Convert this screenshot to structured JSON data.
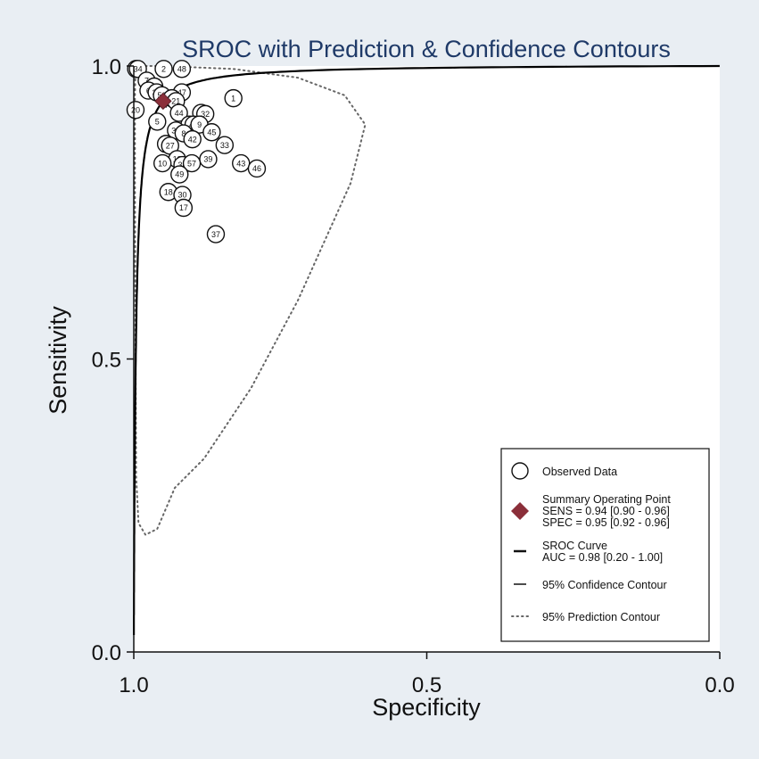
{
  "chart_data": {
    "type": "scatter",
    "title": "SROC with Prediction & Confidence Contours",
    "xlabel": "Specificity",
    "ylabel": "Sensitivity",
    "xlim": [
      1.0,
      0.0
    ],
    "ylim": [
      0.0,
      1.0
    ],
    "x_ticks": [
      "1.0",
      "0.5",
      "0.0"
    ],
    "y_ticks": [
      "0.0",
      "0.5",
      "1.0"
    ],
    "grid": false,
    "legend_position": "bottom-right",
    "colors": {
      "background": "#e9eef3",
      "plot_bg": "#ffffff",
      "summary_point": "#8b2f3a",
      "title": "#1f3a68",
      "curve": "#000000",
      "prediction": "#666666"
    },
    "observed_studies": [
      {
        "label": "24",
        "spec": 0.996,
        "sens": 0.995
      },
      {
        "label": "34",
        "spec": 0.993,
        "sens": 0.995
      },
      {
        "label": "2",
        "spec": 0.949,
        "sens": 0.995
      },
      {
        "label": "48",
        "spec": 0.918,
        "sens": 0.995
      },
      {
        "label": "7",
        "spec": 0.978,
        "sens": 0.975
      },
      {
        "label": "11",
        "spec": 0.965,
        "sens": 0.965
      },
      {
        "label": "6",
        "spec": 0.975,
        "sens": 0.958
      },
      {
        "label": "31",
        "spec": 0.961,
        "sens": 0.955
      },
      {
        "label": "53",
        "spec": 0.952,
        "sens": 0.95
      },
      {
        "label": "47",
        "spec": 0.918,
        "sens": 0.955
      },
      {
        "label": "29",
        "spec": 0.935,
        "sens": 0.945
      },
      {
        "label": "21",
        "spec": 0.928,
        "sens": 0.94
      },
      {
        "label": "1",
        "spec": 0.83,
        "sens": 0.945
      },
      {
        "label": "20",
        "spec": 0.997,
        "sens": 0.925
      },
      {
        "label": "44",
        "spec": 0.923,
        "sens": 0.92
      },
      {
        "label": "13",
        "spec": 0.885,
        "sens": 0.92
      },
      {
        "label": "32",
        "spec": 0.878,
        "sens": 0.918
      },
      {
        "label": "5",
        "spec": 0.96,
        "sens": 0.905
      },
      {
        "label": "14",
        "spec": 0.905,
        "sens": 0.9
      },
      {
        "label": "40",
        "spec": 0.898,
        "sens": 0.9
      },
      {
        "label": "9",
        "spec": 0.888,
        "sens": 0.9
      },
      {
        "label": "35",
        "spec": 0.928,
        "sens": 0.89
      },
      {
        "label": "8",
        "spec": 0.915,
        "sens": 0.885
      },
      {
        "label": "45",
        "spec": 0.867,
        "sens": 0.887
      },
      {
        "label": "42",
        "spec": 0.9,
        "sens": 0.875
      },
      {
        "label": "58",
        "spec": 0.945,
        "sens": 0.867
      },
      {
        "label": "27",
        "spec": 0.938,
        "sens": 0.864
      },
      {
        "label": "33",
        "spec": 0.845,
        "sens": 0.865
      },
      {
        "label": "39",
        "spec": 0.873,
        "sens": 0.841
      },
      {
        "label": "19",
        "spec": 0.926,
        "sens": 0.841
      },
      {
        "label": "10",
        "spec": 0.951,
        "sens": 0.834
      },
      {
        "label": "38",
        "spec": 0.917,
        "sens": 0.831
      },
      {
        "label": "57",
        "spec": 0.901,
        "sens": 0.834
      },
      {
        "label": "43",
        "spec": 0.817,
        "sens": 0.834
      },
      {
        "label": "46",
        "spec": 0.79,
        "sens": 0.825
      },
      {
        "label": "49",
        "spec": 0.922,
        "sens": 0.815
      },
      {
        "label": "18",
        "spec": 0.941,
        "sens": 0.785
      },
      {
        "label": "30",
        "spec": 0.917,
        "sens": 0.78
      },
      {
        "label": "17",
        "spec": 0.915,
        "sens": 0.758
      },
      {
        "label": "37",
        "spec": 0.86,
        "sens": 0.713
      }
    ],
    "summary_point": {
      "spec": 0.95,
      "sens": 0.94
    },
    "sroc_curve": {
      "auc": 0.98
    },
    "confidence_contour": [
      [
        0.99,
        0.995
      ],
      [
        0.965,
        0.965
      ],
      [
        0.94,
        0.94
      ],
      [
        0.945,
        0.93
      ],
      [
        0.97,
        0.95
      ],
      [
        0.99,
        0.99
      ]
    ],
    "prediction_contour": [
      [
        0.997,
        1.0
      ],
      [
        0.95,
        1.0
      ],
      [
        0.83,
        0.995
      ],
      [
        0.72,
        0.98
      ],
      [
        0.64,
        0.95
      ],
      [
        0.605,
        0.9
      ],
      [
        0.63,
        0.8
      ],
      [
        0.72,
        0.6
      ],
      [
        0.8,
        0.45
      ],
      [
        0.88,
        0.33
      ],
      [
        0.93,
        0.28
      ],
      [
        0.96,
        0.21
      ],
      [
        0.98,
        0.2
      ],
      [
        0.992,
        0.22
      ],
      [
        0.996,
        0.3
      ],
      [
        0.997,
        0.5
      ],
      [
        0.998,
        0.8
      ],
      [
        0.998,
        0.95
      ],
      [
        0.997,
        1.0
      ]
    ],
    "legend": [
      {
        "key": "observed",
        "lines": [
          "Observed Data"
        ]
      },
      {
        "key": "summary",
        "lines": [
          "Summary Operating Point",
          "SENS = 0.94 [0.90 - 0.96]",
          "SPEC = 0.95 [0.92 - 0.96]"
        ]
      },
      {
        "key": "sroc",
        "lines": [
          "SROC Curve",
          "AUC = 0.98 [0.20 - 1.00]"
        ]
      },
      {
        "key": "confidence",
        "lines": [
          "95% Confidence Contour"
        ]
      },
      {
        "key": "prediction",
        "lines": [
          "95% Prediction Contour"
        ]
      }
    ]
  }
}
